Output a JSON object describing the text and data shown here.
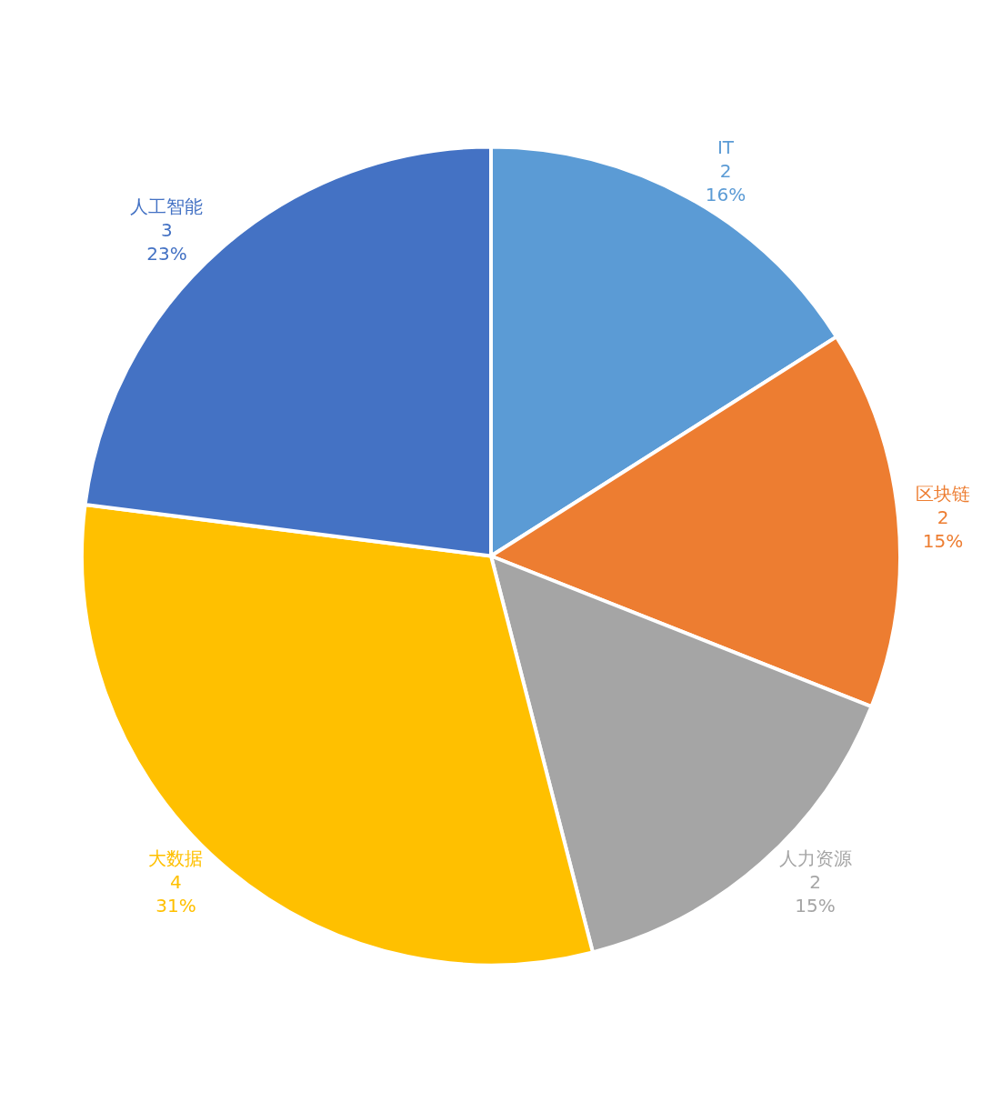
{
  "chart_data": {
    "type": "pie",
    "categories": [
      "IT",
      "区块链",
      "人力资源",
      "大数据",
      "人工智能"
    ],
    "values": [
      16,
      15,
      15,
      31,
      23
    ],
    "colors": [
      "#5b9bd5",
      "#ed7d31",
      "#a5a5a5",
      "#ffc000",
      "#4472c4"
    ],
    "value_labels": [
      "2\n16%",
      "2\n15%",
      "2\n15%",
      "4\n31%",
      "3\n23%"
    ],
    "legend": false
  }
}
